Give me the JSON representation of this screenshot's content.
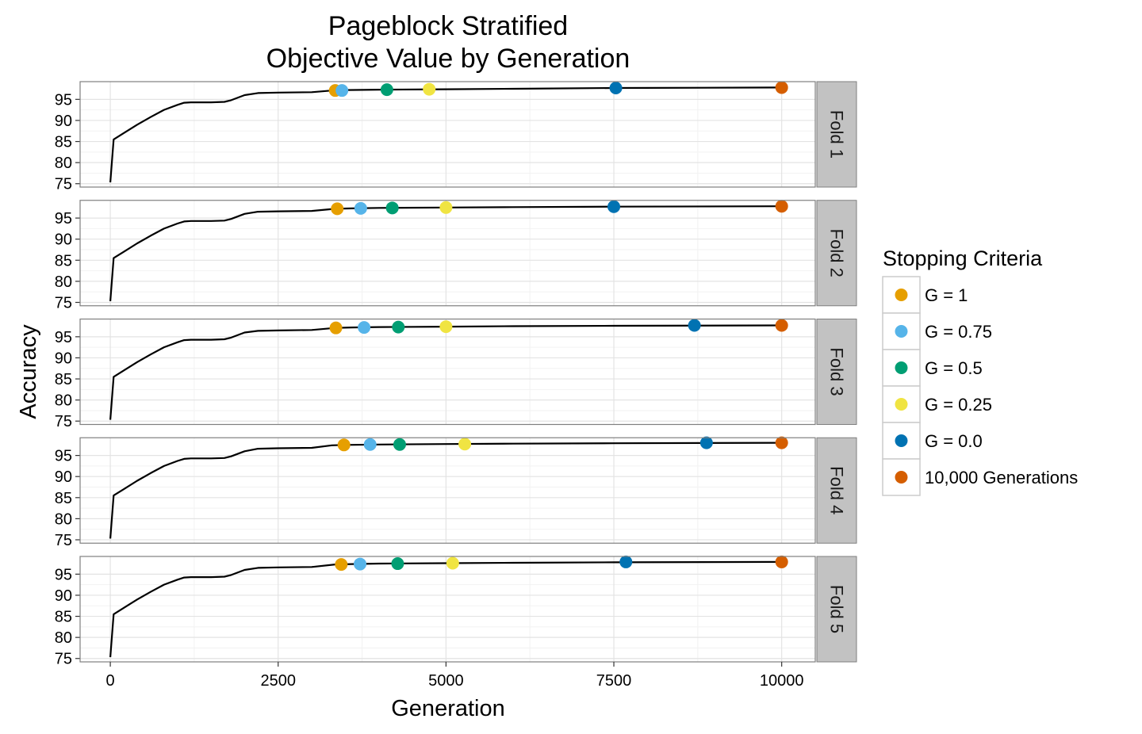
{
  "chart_data": {
    "type": "line",
    "title": [
      "Pageblock Stratified",
      "Objective Value by Generation"
    ],
    "xlabel": "Generation",
    "ylabel": "Accuracy",
    "xlim": [
      -450,
      10500
    ],
    "ylim": [
      74.2,
      99.2
    ],
    "x_ticks": [
      0,
      2500,
      5000,
      7500,
      10000
    ],
    "x_tick_labels": [
      "0",
      "2500",
      "5000",
      "7500",
      "10000"
    ],
    "y_ticks": [
      75,
      80,
      85,
      90,
      95
    ],
    "y_tick_labels": [
      "75",
      "80",
      "85",
      "90",
      "95"
    ],
    "grid": true,
    "legend": {
      "title": "Stopping Criteria",
      "placement": "right",
      "items": [
        {
          "label": "G = 1",
          "color": "#E69F00"
        },
        {
          "label": "G = 0.75",
          "color": "#56B4E9"
        },
        {
          "label": "G = 0.5",
          "color": "#009E73"
        },
        {
          "label": "G = 0.25",
          "color": "#F0E442"
        },
        {
          "label": "G = 0.0",
          "color": "#0072B2"
        },
        {
          "label": "10,000 Generations",
          "color": "#D55E00"
        }
      ]
    },
    "facets": [
      {
        "label": "Fold 1",
        "curve": [
          [
            0,
            75.3
          ],
          [
            50,
            85.5
          ],
          [
            200,
            87
          ],
          [
            400,
            89
          ],
          [
            600,
            90.8
          ],
          [
            800,
            92.5
          ],
          [
            1000,
            93.7
          ],
          [
            1100,
            94.2
          ],
          [
            1200,
            94.3
          ],
          [
            1500,
            94.3
          ],
          [
            1700,
            94.4
          ],
          [
            1800,
            94.8
          ],
          [
            2000,
            96
          ],
          [
            2200,
            96.5
          ],
          [
            2500,
            96.6
          ],
          [
            3000,
            96.7
          ],
          [
            3300,
            97.1
          ],
          [
            3500,
            97.2
          ],
          [
            4000,
            97.3
          ],
          [
            5000,
            97.4
          ],
          [
            6000,
            97.5
          ],
          [
            7500,
            97.7
          ],
          [
            10000,
            97.8
          ]
        ],
        "points": [
          {
            "criterion": "G = 1",
            "x": 3350,
            "y": 97.1
          },
          {
            "criterion": "G = 0.75",
            "x": 3450,
            "y": 97.1
          },
          {
            "criterion": "G = 0.5",
            "x": 4120,
            "y": 97.3
          },
          {
            "criterion": "G = 0.25",
            "x": 4750,
            "y": 97.4
          },
          {
            "criterion": "G = 0.0",
            "x": 7530,
            "y": 97.7
          },
          {
            "criterion": "10,000 Generations",
            "x": 10000,
            "y": 97.8
          }
        ]
      },
      {
        "label": "Fold 2",
        "curve": [
          [
            0,
            75.3
          ],
          [
            50,
            85.5
          ],
          [
            200,
            87
          ],
          [
            400,
            89
          ],
          [
            600,
            90.8
          ],
          [
            800,
            92.5
          ],
          [
            1000,
            93.7
          ],
          [
            1100,
            94.2
          ],
          [
            1200,
            94.3
          ],
          [
            1500,
            94.3
          ],
          [
            1700,
            94.4
          ],
          [
            1800,
            94.8
          ],
          [
            2000,
            96
          ],
          [
            2200,
            96.5
          ],
          [
            2500,
            96.6
          ],
          [
            3000,
            96.7
          ],
          [
            3350,
            97.2
          ],
          [
            3600,
            97.3
          ],
          [
            4000,
            97.4
          ],
          [
            5000,
            97.5
          ],
          [
            6000,
            97.6
          ],
          [
            7500,
            97.7
          ],
          [
            10000,
            97.8
          ]
        ],
        "points": [
          {
            "criterion": "G = 1",
            "x": 3380,
            "y": 97.2
          },
          {
            "criterion": "G = 0.75",
            "x": 3730,
            "y": 97.3
          },
          {
            "criterion": "G = 0.5",
            "x": 4200,
            "y": 97.4
          },
          {
            "criterion": "G = 0.25",
            "x": 5000,
            "y": 97.5
          },
          {
            "criterion": "G = 0.0",
            "x": 7500,
            "y": 97.7
          },
          {
            "criterion": "10,000 Generations",
            "x": 10000,
            "y": 97.8
          }
        ]
      },
      {
        "label": "Fold 3",
        "curve": [
          [
            0,
            75.3
          ],
          [
            50,
            85.5
          ],
          [
            200,
            87
          ],
          [
            400,
            89
          ],
          [
            600,
            90.8
          ],
          [
            800,
            92.5
          ],
          [
            1000,
            93.7
          ],
          [
            1100,
            94.2
          ],
          [
            1200,
            94.3
          ],
          [
            1500,
            94.3
          ],
          [
            1700,
            94.4
          ],
          [
            1800,
            94.8
          ],
          [
            2000,
            96
          ],
          [
            2200,
            96.4
          ],
          [
            2500,
            96.5
          ],
          [
            3000,
            96.6
          ],
          [
            3350,
            97.1
          ],
          [
            3600,
            97.2
          ],
          [
            4000,
            97.3
          ],
          [
            5000,
            97.4
          ],
          [
            6000,
            97.5
          ],
          [
            7500,
            97.6
          ],
          [
            10000,
            97.7
          ]
        ],
        "points": [
          {
            "criterion": "G = 1",
            "x": 3360,
            "y": 97.1
          },
          {
            "criterion": "G = 0.75",
            "x": 3780,
            "y": 97.2
          },
          {
            "criterion": "G = 0.5",
            "x": 4290,
            "y": 97.3
          },
          {
            "criterion": "G = 0.25",
            "x": 5000,
            "y": 97.4
          },
          {
            "criterion": "G = 0.0",
            "x": 8700,
            "y": 97.7
          },
          {
            "criterion": "10,000 Generations",
            "x": 10000,
            "y": 97.7
          }
        ]
      },
      {
        "label": "Fold 4",
        "curve": [
          [
            0,
            75.3
          ],
          [
            50,
            85.5
          ],
          [
            200,
            87
          ],
          [
            400,
            89
          ],
          [
            600,
            90.8
          ],
          [
            800,
            92.5
          ],
          [
            1000,
            93.7
          ],
          [
            1100,
            94.2
          ],
          [
            1200,
            94.3
          ],
          [
            1500,
            94.3
          ],
          [
            1700,
            94.4
          ],
          [
            1800,
            94.8
          ],
          [
            2000,
            96
          ],
          [
            2200,
            96.6
          ],
          [
            2500,
            96.7
          ],
          [
            3000,
            96.8
          ],
          [
            3300,
            97.4
          ],
          [
            3500,
            97.5
          ],
          [
            4000,
            97.6
          ],
          [
            5000,
            97.7
          ],
          [
            6000,
            97.8
          ],
          [
            7500,
            97.9
          ],
          [
            10000,
            98
          ]
        ],
        "points": [
          {
            "criterion": "G = 1",
            "x": 3480,
            "y": 97.5
          },
          {
            "criterion": "G = 0.75",
            "x": 3870,
            "y": 97.6
          },
          {
            "criterion": "G = 0.5",
            "x": 4310,
            "y": 97.6
          },
          {
            "criterion": "G = 0.25",
            "x": 5280,
            "y": 97.7
          },
          {
            "criterion": "G = 0.0",
            "x": 8880,
            "y": 98.0
          },
          {
            "criterion": "10,000 Generations",
            "x": 10000,
            "y": 98.0
          }
        ]
      },
      {
        "label": "Fold 5",
        "curve": [
          [
            0,
            75.3
          ],
          [
            50,
            85.5
          ],
          [
            200,
            87
          ],
          [
            400,
            89
          ],
          [
            600,
            90.8
          ],
          [
            800,
            92.5
          ],
          [
            1000,
            93.7
          ],
          [
            1100,
            94.2
          ],
          [
            1200,
            94.3
          ],
          [
            1500,
            94.3
          ],
          [
            1700,
            94.4
          ],
          [
            1800,
            94.8
          ],
          [
            2000,
            96
          ],
          [
            2200,
            96.5
          ],
          [
            2500,
            96.6
          ],
          [
            3000,
            96.7
          ],
          [
            3350,
            97.3
          ],
          [
            3600,
            97.4
          ],
          [
            4000,
            97.5
          ],
          [
            5000,
            97.6
          ],
          [
            6000,
            97.7
          ],
          [
            7500,
            97.8
          ],
          [
            10000,
            97.9
          ]
        ],
        "points": [
          {
            "criterion": "G = 1",
            "x": 3440,
            "y": 97.3
          },
          {
            "criterion": "G = 0.75",
            "x": 3720,
            "y": 97.4
          },
          {
            "criterion": "G = 0.5",
            "x": 4280,
            "y": 97.5
          },
          {
            "criterion": "G = 0.25",
            "x": 5100,
            "y": 97.6
          },
          {
            "criterion": "G = 0.0",
            "x": 7680,
            "y": 97.9
          },
          {
            "criterion": "10,000 Generations",
            "x": 10000,
            "y": 97.9
          }
        ]
      }
    ]
  }
}
